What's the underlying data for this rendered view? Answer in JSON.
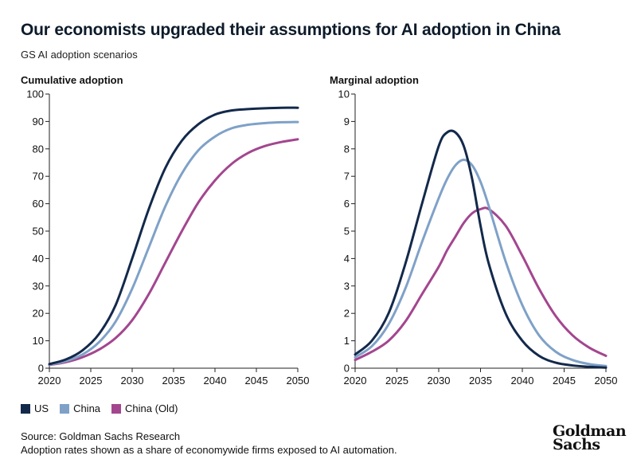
{
  "title": "Our economists upgraded their assumptions for AI adoption in China",
  "subtitle": "GS AI adoption scenarios",
  "colors": {
    "us": "#13294b",
    "china": "#7fa1c8",
    "china_old": "#a3468f",
    "axis": "#222222"
  },
  "legend": [
    {
      "label": "US",
      "color": "#13294b"
    },
    {
      "label": "China",
      "color": "#7fa1c8"
    },
    {
      "label": "China (Old)",
      "color": "#a3468f"
    }
  ],
  "source": "Source: Goldman Sachs Research",
  "note": "Adoption rates shown as a share of economywide firms exposed to AI automation.",
  "logo": {
    "line1": "Goldman",
    "line2": "Sachs"
  },
  "chart_data": [
    {
      "type": "line",
      "title": "Cumulative adoption",
      "xlim": [
        2020,
        2050
      ],
      "ylim": [
        0,
        100
      ],
      "xticks": [
        2020,
        2025,
        2030,
        2035,
        2040,
        2045,
        2050
      ],
      "yticks": [
        0,
        10,
        20,
        30,
        40,
        50,
        60,
        70,
        80,
        90,
        100
      ],
      "x": [
        2020,
        2022,
        2024,
        2026,
        2028,
        2030,
        2032,
        2034,
        2036,
        2038,
        2040,
        2042,
        2044,
        2046,
        2048,
        2050
      ],
      "series": [
        {
          "name": "US",
          "values": [
            1.5,
            3.2,
            6.5,
            12.5,
            23,
            40,
            58,
            73,
            83,
            89,
            92.5,
            94,
            94.5,
            94.8,
            95,
            95
          ]
        },
        {
          "name": "China",
          "values": [
            1.3,
            2.6,
            5,
            9.5,
            17,
            29,
            44,
            59,
            71,
            79.5,
            84.5,
            87.5,
            88.8,
            89.4,
            89.7,
            89.8
          ]
        },
        {
          "name": "China (Old)",
          "values": [
            1.2,
            2.2,
            4,
            6.8,
            11,
            17.5,
            27,
            38.5,
            50,
            60.5,
            68.5,
            74.5,
            78.5,
            81,
            82.5,
            83.5
          ]
        }
      ]
    },
    {
      "type": "line",
      "title": "Marginal adoption",
      "xlim": [
        2020,
        2050
      ],
      "ylim": [
        0,
        10
      ],
      "xticks": [
        2020,
        2025,
        2030,
        2035,
        2040,
        2045,
        2050
      ],
      "yticks": [
        0,
        1,
        2,
        3,
        4,
        5,
        6,
        7,
        8,
        9,
        10
      ],
      "x": [
        2020,
        2022,
        2024,
        2026,
        2028,
        2030,
        2031,
        2032,
        2033,
        2034,
        2035,
        2036,
        2038,
        2040,
        2042,
        2044,
        2046,
        2048,
        2050
      ],
      "series": [
        {
          "name": "US",
          "values": [
            0.5,
            1.0,
            2.0,
            3.8,
            6.0,
            8.1,
            8.6,
            8.6,
            8.1,
            6.9,
            5.2,
            3.8,
            2.0,
            1.0,
            0.45,
            0.2,
            0.1,
            0.05,
            0.02
          ]
        },
        {
          "name": "China",
          "values": [
            0.4,
            0.8,
            1.6,
            2.9,
            4.6,
            6.2,
            6.9,
            7.4,
            7.6,
            7.4,
            6.8,
            5.9,
            3.9,
            2.3,
            1.2,
            0.6,
            0.3,
            0.15,
            0.08
          ]
        },
        {
          "name": "China (Old)",
          "values": [
            0.3,
            0.6,
            1.0,
            1.7,
            2.7,
            3.7,
            4.3,
            4.8,
            5.3,
            5.65,
            5.8,
            5.8,
            5.2,
            4.1,
            2.9,
            1.9,
            1.2,
            0.75,
            0.45
          ]
        }
      ]
    }
  ]
}
